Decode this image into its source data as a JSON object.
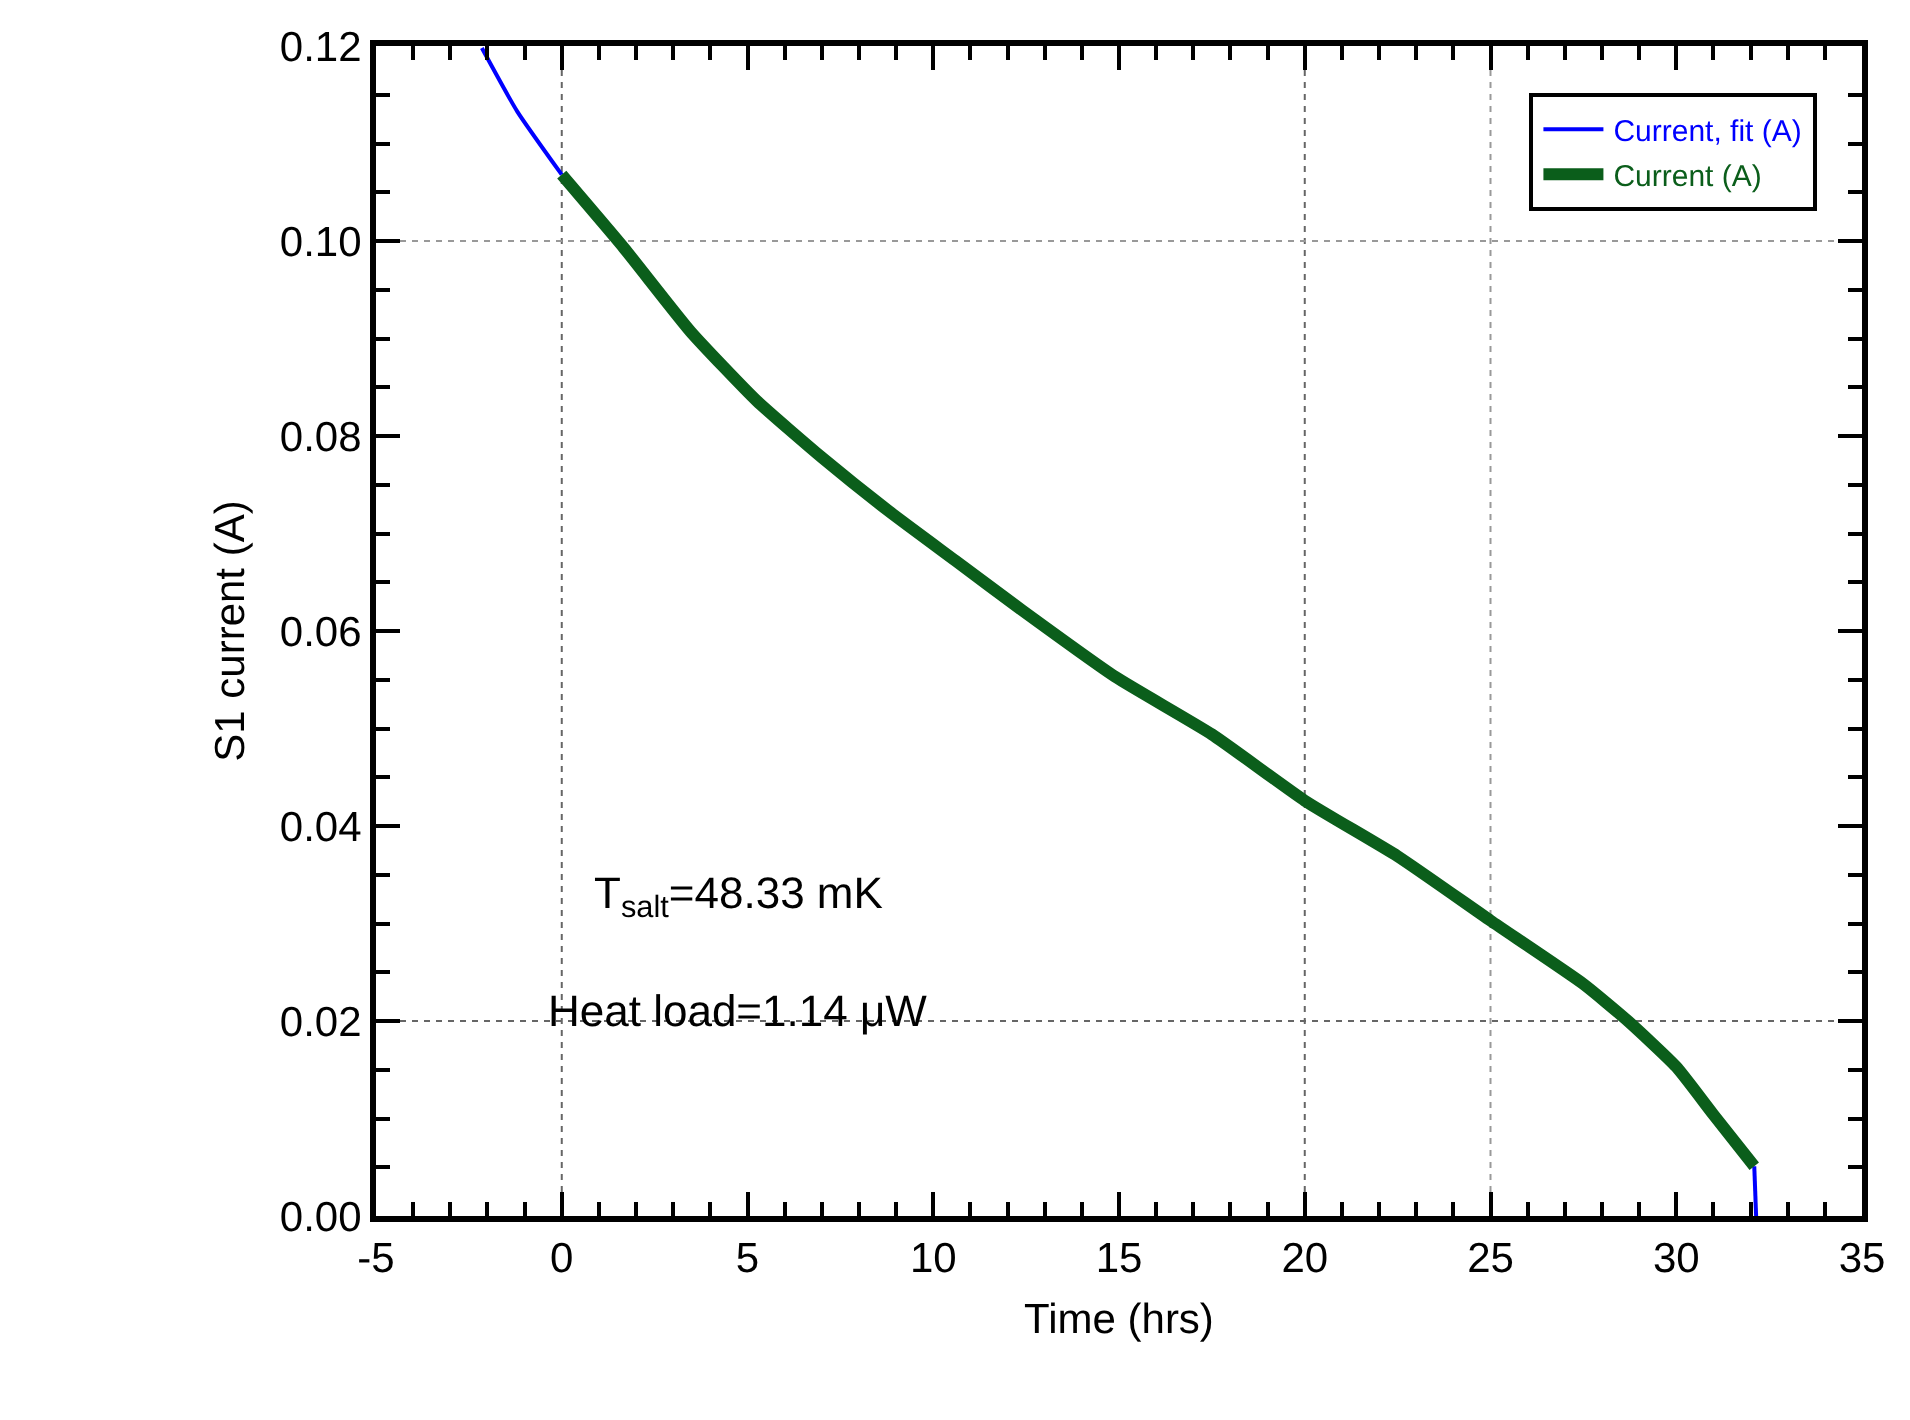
{
  "chart_data": {
    "type": "line",
    "xlabel": "Time (hrs)",
    "ylabel": "S1 current (A)",
    "series": [
      {
        "name": "Current, fit (A)",
        "color": "#0000ff",
        "x": [
          -2.15,
          -1.2,
          0,
          1.67,
          3.47,
          5.25,
          7,
          8.8,
          10.6,
          12.4,
          14.9,
          17.5,
          20,
          22.5,
          25,
          27.5,
          28.7,
          30,
          31,
          32.1,
          32.15
        ],
        "values": [
          0.1198,
          0.1133,
          0.1068,
          null,
          null,
          null,
          null,
          null,
          null,
          null,
          null,
          null,
          null,
          null,
          null,
          null,
          null,
          null,
          null,
          0.0051,
          0
        ]
      },
      {
        "name": "Current (A)",
        "color": "#0b5e1b",
        "x": [
          0,
          1.67,
          3.47,
          5.25,
          7,
          8.8,
          10.6,
          12.4,
          14.9,
          17.5,
          20,
          22.5,
          25,
          27.5,
          28.7,
          30,
          31,
          32.1
        ],
        "values": [
          0.1068,
          0.0993,
          0.0907,
          0.0836,
          0.0778,
          0.0723,
          0.0672,
          0.0621,
          0.0553,
          0.0494,
          0.0426,
          0.0369,
          0.0303,
          0.0238,
          0.02,
          0.0153,
          0.0104,
          0.0051
        ]
      }
    ],
    "xlim": [
      -5,
      35
    ],
    "xticks": [
      -5,
      {
        "value": -4,
        "label": null
      },
      {
        "value": -3,
        "label": null
      },
      {
        "value": -2,
        "label": null
      },
      {
        "value": -1,
        "label": null
      },
      0,
      {
        "value": 1,
        "label": null
      },
      {
        "value": 2,
        "label": null
      },
      {
        "value": 3,
        "label": null
      },
      {
        "value": 4,
        "label": null
      },
      5,
      {
        "value": 6,
        "label": null
      },
      {
        "value": 7,
        "label": null
      },
      {
        "value": 8,
        "label": null
      },
      {
        "value": 9,
        "label": null
      },
      10,
      {
        "value": 11,
        "label": null
      },
      {
        "value": 12,
        "label": null
      },
      {
        "value": 13,
        "label": null
      },
      {
        "value": 14,
        "label": null
      },
      15,
      {
        "value": 16,
        "label": null
      },
      {
        "value": 17,
        "label": null
      },
      {
        "value": 18,
        "label": null
      },
      {
        "value": 19,
        "label": null
      },
      20,
      {
        "value": 21,
        "label": null
      },
      {
        "value": 22,
        "label": null
      },
      {
        "value": 23,
        "label": null
      },
      {
        "value": 24,
        "label": null
      },
      25,
      {
        "value": 26,
        "label": null
      },
      {
        "value": 27,
        "label": null
      },
      {
        "value": 28,
        "label": null
      },
      {
        "value": 29,
        "label": null
      },
      30,
      {
        "value": 31,
        "label": null
      },
      {
        "value": 32,
        "label": null
      },
      {
        "value": 33,
        "label": null
      },
      {
        "value": 34,
        "label": null
      },
      35
    ],
    "ylim": [
      0,
      0.12
    ],
    "yticks": [
      {
        "value": 0,
        "label": "0.00"
      },
      {
        "value": 0.005,
        "label": null
      },
      {
        "value": 0.01,
        "label": null
      },
      {
        "value": 0.015,
        "label": null
      },
      {
        "value": 0.02,
        "label": "0.02"
      },
      {
        "value": 0.025,
        "label": null
      },
      {
        "value": 0.03,
        "label": null
      },
      {
        "value": 0.035,
        "label": null
      },
      {
        "value": 0.04,
        "label": "0.04"
      },
      {
        "value": 0.045,
        "label": null
      },
      {
        "value": 0.05,
        "label": null
      },
      {
        "value": 0.055,
        "label": null
      },
      {
        "value": 0.06,
        "label": "0.06"
      },
      {
        "value": 0.065,
        "label": null
      },
      {
        "value": 0.07,
        "label": null
      },
      {
        "value": 0.075,
        "label": null
      },
      {
        "value": 0.08,
        "label": "0.08"
      },
      {
        "value": 0.085,
        "label": null
      },
      {
        "value": 0.09,
        "label": null
      },
      {
        "value": 0.095,
        "label": null
      },
      {
        "value": 0.1,
        "label": "0.10"
      },
      {
        "value": 0.105,
        "label": null
      },
      {
        "value": 0.11,
        "label": null
      },
      {
        "value": 0.115,
        "label": null
      },
      {
        "value": 0.12,
        "label": "0.12"
      }
    ],
    "ref_lines": [
      {
        "axis": "x",
        "value": 0,
        "color": "#666666",
        "line_style": "dotted"
      },
      {
        "axis": "x",
        "value": 20,
        "color": "#666666",
        "line_style": "dotted"
      },
      {
        "axis": "x",
        "value": 25,
        "color": "#999999",
        "line_style": "dotted"
      },
      {
        "axis": "y",
        "value": 0.1,
        "color": "#999999",
        "line_style": "dotted"
      },
      {
        "axis": "y",
        "value": 0.02,
        "color": "#666666",
        "line_style": "dotted"
      }
    ],
    "annotations": [
      "T$_{salt}$=48.33 mK",
      "Heat load=1.14 μW"
    ],
    "legend": "top right",
    "marker": "none",
    "line_style": "solid"
  }
}
